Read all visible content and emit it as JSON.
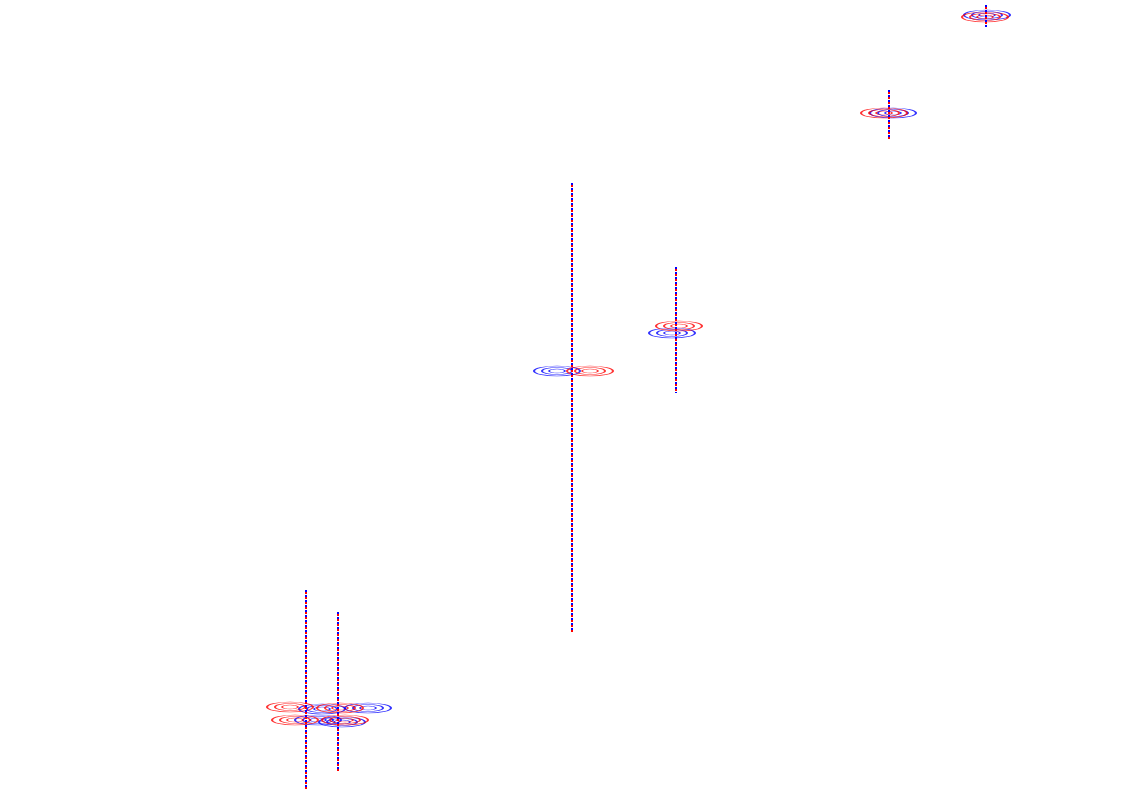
{
  "chart_data": {
    "type": "contour",
    "xlim": [
      0,
      1133
    ],
    "ylim": [
      0,
      791
    ],
    "tick_labels": false,
    "grid": false,
    "series": [
      {
        "type": "line",
        "color": "#0000ff",
        "line_style": "dotted",
        "x": [
          306,
          306,
          null,
          338,
          338,
          null,
          572,
          572,
          null,
          676,
          676,
          null,
          889,
          889,
          null,
          986,
          986
        ],
        "y": [
          201,
          1,
          null,
          179,
          19,
          null,
          608,
          159,
          null,
          524,
          398,
          null,
          701,
          651,
          null,
          786,
          764
        ]
      },
      {
        "type": "line",
        "color": "#ff0000",
        "line_style": "dotted",
        "x": [
          306,
          306,
          null,
          338,
          338,
          null,
          572,
          572,
          null,
          676,
          676,
          null,
          889,
          889,
          null,
          986,
          986
        ],
        "y": [
          201,
          1,
          null,
          179,
          19,
          null,
          608,
          159,
          null,
          524,
          398,
          null,
          701,
          651,
          null,
          786,
          764
        ]
      },
      {
        "type": "scatter",
        "color": "#0000ff",
        "marker": "ellipse",
        "x": [
          322,
          318,
          368,
          342,
          557,
          672,
          893,
          987
        ],
        "y": [
          82,
          71,
          83,
          69,
          420,
          458,
          678,
          776
        ]
      },
      {
        "type": "scatter",
        "color": "#ff0000",
        "marker": "ellipse",
        "x": [
          290,
          295,
          340,
          345,
          590,
          679,
          884,
          985
        ],
        "y": [
          84,
          71,
          83,
          71,
          420,
          465,
          678,
          774
        ]
      }
    ]
  }
}
